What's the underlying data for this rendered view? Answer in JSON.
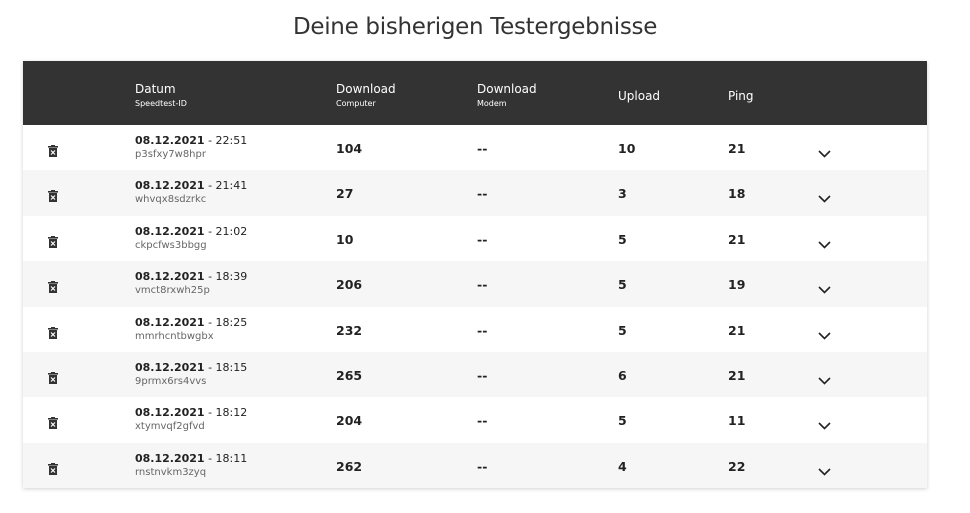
{
  "title": "Deine bisherigen Testergebnisse",
  "table": {
    "header": [
      {
        "label": "Datum",
        "sub": "Speedtest-ID"
      },
      {
        "label": "Download",
        "sub": "Computer"
      },
      {
        "label": "Download",
        "sub": "Modem"
      },
      {
        "label": "Upload"
      },
      {
        "label": "Ping"
      }
    ],
    "rows": [
      {
        "date": "08.12.2021",
        "time": "- 22:51",
        "id": "p3sfxy7w8hpr",
        "download_computer": 104,
        "download_modem": "--",
        "upload": 10,
        "ping": 21
      },
      {
        "date": "08.12.2021",
        "time": "- 21:41",
        "id": "whvqx8sdzrkc",
        "download_computer": 27,
        "download_modem": "--",
        "upload": 3,
        "ping": 18
      },
      {
        "date": "08.12.2021",
        "time": "- 21:02",
        "id": "ckpcfws3bbgg",
        "download_computer": 10,
        "download_modem": "--",
        "upload": 5,
        "ping": 21
      },
      {
        "date": "08.12.2021",
        "time": "- 18:39",
        "id": "vmct8rxwh25p",
        "download_computer": 206,
        "download_modem": "--",
        "upload": 5,
        "ping": 19
      },
      {
        "date": "08.12.2021",
        "time": "- 18:25",
        "id": "mmrhcntbwgbx",
        "download_computer": 232,
        "download_modem": "--",
        "upload": 5,
        "ping": 21
      },
      {
        "date": "08.12.2021",
        "time": "- 18:15",
        "id": "9prmx6rs4vvs",
        "download_computer": 265,
        "download_modem": "--",
        "upload": 6,
        "ping": 21
      },
      {
        "date": "08.12.2021",
        "time": "- 18:12",
        "id": "xtymvqf2gfvd",
        "download_computer": 204,
        "download_modem": "--",
        "upload": 5,
        "ping": 11
      },
      {
        "date": "08.12.2021",
        "time": "- 18:11",
        "id": "rnstnvkm3zyq",
        "download_computer": 262,
        "download_modem": "--",
        "upload": 4,
        "ping": 22
      }
    ]
  }
}
